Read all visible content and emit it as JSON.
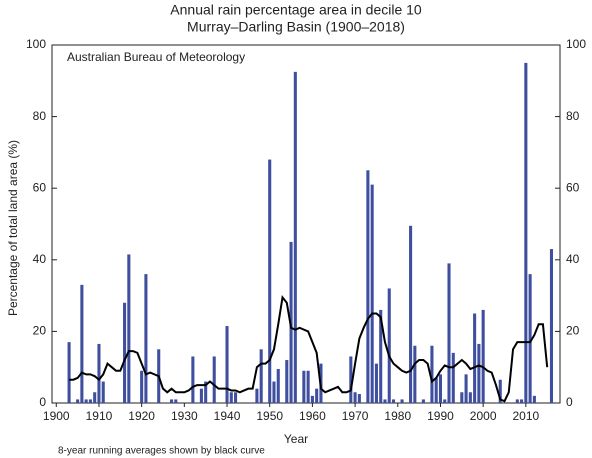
{
  "chart_data": {
    "type": "bar",
    "title": "Annual rain percentage area in decile 10",
    "subtitle": "Murray–Darling Basin (1900–2018)",
    "annotation": "Australian Bureau of Meteorology",
    "footnote": "8-year running averages shown by black curve",
    "x_label": "Year",
    "y_label": "Percentage of total land area (%)",
    "x": [
      1900,
      1901,
      1902,
      1903,
      1904,
      1905,
      1906,
      1907,
      1908,
      1909,
      1910,
      1911,
      1912,
      1913,
      1914,
      1915,
      1916,
      1917,
      1918,
      1919,
      1920,
      1921,
      1922,
      1923,
      1924,
      1925,
      1926,
      1927,
      1928,
      1929,
      1930,
      1931,
      1932,
      1933,
      1934,
      1935,
      1936,
      1937,
      1938,
      1939,
      1940,
      1941,
      1942,
      1943,
      1944,
      1945,
      1946,
      1947,
      1948,
      1949,
      1950,
      1951,
      1952,
      1953,
      1954,
      1955,
      1956,
      1957,
      1958,
      1959,
      1960,
      1961,
      1962,
      1963,
      1964,
      1965,
      1966,
      1967,
      1968,
      1969,
      1970,
      1971,
      1972,
      1973,
      1974,
      1975,
      1976,
      1977,
      1978,
      1979,
      1980,
      1981,
      1982,
      1983,
      1984,
      1985,
      1986,
      1987,
      1988,
      1989,
      1990,
      1991,
      1992,
      1993,
      1994,
      1995,
      1996,
      1997,
      1998,
      1999,
      2000,
      2001,
      2002,
      2003,
      2004,
      2005,
      2006,
      2007,
      2008,
      2009,
      2010,
      2011,
      2012,
      2013,
      2014,
      2015,
      2016
    ],
    "series": [
      {
        "type": "bar",
        "color": "#3f4fa0",
        "values": [
          0,
          0,
          0,
          17,
          0,
          1,
          33,
          1,
          1,
          3,
          16.5,
          6,
          0,
          0,
          0,
          0,
          28,
          41.5,
          0,
          0,
          9,
          36,
          0,
          0,
          15,
          0,
          0,
          1,
          1,
          0,
          0,
          0,
          13,
          0,
          4,
          6,
          0,
          13,
          0,
          0,
          21.5,
          3,
          3,
          0,
          0,
          0,
          0,
          4,
          15,
          0,
          68,
          6,
          9.5,
          0,
          12,
          45,
          92.5,
          0,
          9,
          9,
          2,
          4,
          11,
          0,
          0,
          0,
          0,
          0,
          0,
          13,
          3,
          2.5,
          0,
          65,
          61,
          11,
          26,
          1,
          32,
          1,
          0,
          1,
          0,
          49.5,
          16,
          0,
          1,
          0,
          16,
          7,
          8,
          1,
          39,
          14,
          0,
          3,
          8,
          3,
          25,
          16.5,
          26,
          0,
          0,
          0,
          6.5,
          0,
          0,
          0,
          1,
          1,
          95,
          36,
          2,
          0,
          0,
          0,
          43
        ]
      },
      {
        "type": "line",
        "color": "#000000",
        "values": [
          null,
          null,
          null,
          6.5,
          6.5,
          7,
          8.5,
          8,
          8,
          7.5,
          6.5,
          8,
          11,
          10,
          9,
          9,
          12,
          14.5,
          14.5,
          14,
          11,
          8,
          8.5,
          8,
          7.5,
          4,
          3,
          4,
          3,
          3,
          3,
          3.5,
          4.5,
          5,
          5,
          5,
          6,
          5,
          4,
          4,
          4,
          3.5,
          3.5,
          3,
          3.5,
          4,
          4,
          10,
          11,
          11,
          12,
          15,
          22,
          29.5,
          28,
          21,
          20.5,
          21,
          20.5,
          20,
          17,
          14,
          4,
          3,
          3.5,
          4,
          4.5,
          3,
          3,
          3.5,
          11,
          18,
          21,
          23.5,
          25,
          25,
          24,
          17,
          13,
          11,
          10,
          9,
          8.5,
          9,
          11,
          12,
          12,
          11,
          6,
          7,
          9,
          10.5,
          10,
          10,
          11,
          12,
          11,
          9.5,
          10,
          10.5,
          10,
          9,
          8.5,
          5,
          1,
          0.5,
          3,
          15,
          17,
          17,
          17,
          17,
          19,
          22,
          22,
          10,
          null
        ]
      }
    ],
    "xlim": [
      1899,
      2018
    ],
    "xticks": [
      1900,
      1910,
      1920,
      1930,
      1940,
      1950,
      1960,
      1970,
      1980,
      1990,
      2000,
      2010
    ],
    "ylim": [
      0,
      100
    ],
    "yticks": [
      0,
      20,
      40,
      60,
      80,
      100
    ],
    "y2lim": [
      0,
      100
    ],
    "y2ticks": [
      0,
      20,
      40,
      60,
      80,
      100
    ]
  }
}
